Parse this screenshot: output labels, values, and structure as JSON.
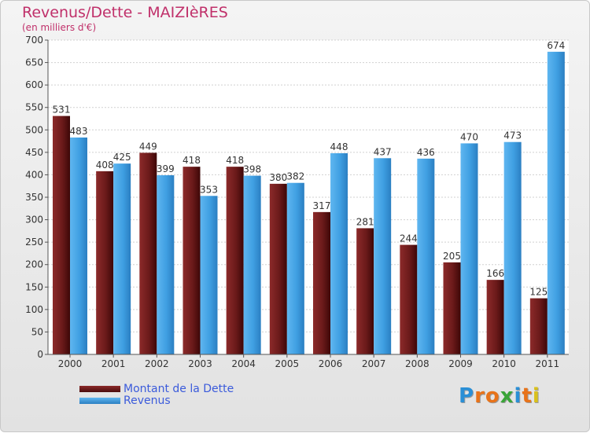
{
  "chart_data": {
    "type": "bar",
    "title": "Revenus/Dette - MAIZIèRES",
    "subtitle": "(en milliers d'€)",
    "xlabel": "",
    "ylabel": "",
    "ylim": [
      0,
      700
    ],
    "yticks": [
      "0",
      "50",
      "100",
      "150",
      "200",
      "250",
      "300",
      "350",
      "400",
      "450",
      "500",
      "550",
      "600",
      "650",
      "700"
    ],
    "grid": true,
    "legend_position": "bottom-left",
    "categories": [
      "2000",
      "2001",
      "2002",
      "2003",
      "2004",
      "2005",
      "2006",
      "2007",
      "2008",
      "2009",
      "2010",
      "2011"
    ],
    "series": [
      {
        "name": "Montant de la Dette",
        "color": "#6b1a1a",
        "values": [
          531,
          408,
          449,
          418,
          418,
          380,
          317,
          281,
          244,
          205,
          166,
          125
        ]
      },
      {
        "name": "Revenus",
        "color": "#3f9fe2",
        "values": [
          483,
          425,
          399,
          353,
          398,
          382,
          448,
          437,
          436,
          470,
          473,
          674
        ]
      }
    ]
  },
  "branding": {
    "logo_text": "Proxiti",
    "logo_colors": [
      "#2a8fd6",
      "#e8731a",
      "#e8731a",
      "#3aa538",
      "#2a8fd6",
      "#e8731a",
      "#d9c11c"
    ]
  }
}
